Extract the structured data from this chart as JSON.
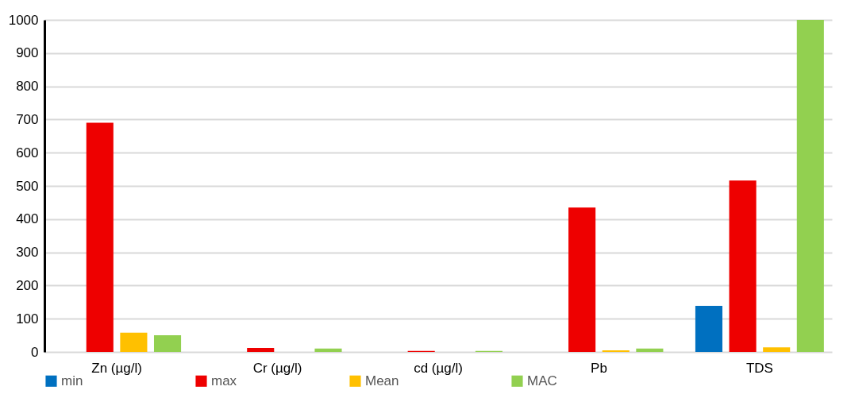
{
  "chart_data": {
    "type": "bar",
    "categories": [
      "Zn  (µg/l)",
      "Cr (µg/l)",
      "cd  (µg/l)",
      "Pb",
      "TDS"
    ],
    "series": [
      {
        "name": "min",
        "color": "#0070c0",
        "values": [
          0,
          0,
          0,
          0,
          139
        ]
      },
      {
        "name": "max",
        "color": "#ee0000",
        "values": [
          690,
          12,
          3,
          435,
          516
        ]
      },
      {
        "name": "Mean",
        "color": "#ffc000",
        "values": [
          58,
          0,
          0,
          5,
          14
        ]
      },
      {
        "name": "MAC",
        "color": "#92d050",
        "values": [
          50,
          10,
          3,
          10,
          1000
        ]
      }
    ],
    "ylim": [
      0,
      1000
    ],
    "yticks": [
      0,
      100,
      200,
      300,
      400,
      500,
      600,
      700,
      800,
      900,
      1000
    ],
    "grid": "y",
    "legend": "bottom"
  }
}
